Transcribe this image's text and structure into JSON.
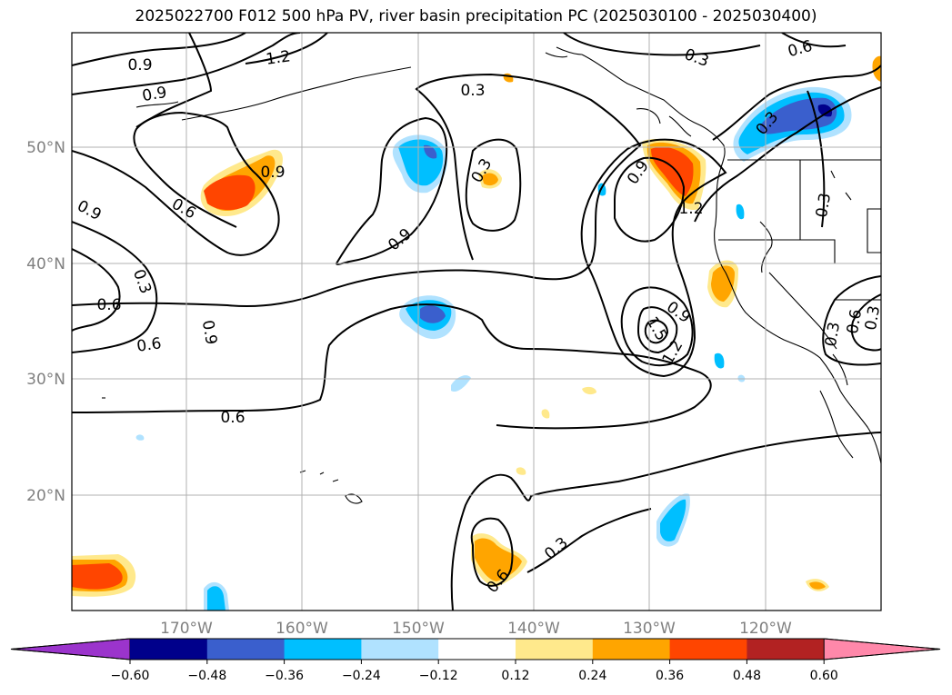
{
  "title": "2025022700 F012 500 hPa PV, river basin precipitation PC (2025030100 - 2025030400)",
  "map": {
    "lon_ticks": [
      "170°W",
      "160°W",
      "150°W",
      "140°W",
      "130°W",
      "120°W"
    ],
    "lat_ticks": [
      "50°N",
      "40°N",
      "30°N",
      "20°N"
    ],
    "contour_labels": [
      "0.9",
      "1.2",
      "0.9",
      "0.9",
      "0.6",
      "0.3",
      "0.6",
      "0.9",
      "0.3",
      "0.6",
      "0.6",
      "0.3",
      "0.9",
      "0.3",
      "0.9",
      "0.3",
      "0.6",
      "0.3",
      "0.9",
      "1.5",
      "1.2",
      "0.3",
      "0.6",
      "0.3",
      "0.6",
      "0.9",
      "1.2",
      "0.3"
    ]
  },
  "colorbar": {
    "labels": [
      "−0.60",
      "−0.48",
      "−0.36",
      "−0.24",
      "−0.12",
      "0.12",
      "0.24",
      "0.36",
      "0.48",
      "0.60"
    ],
    "colors": [
      "#9b34cc",
      "#00008b",
      "#3a5fcd",
      "#00bfff",
      "#b0e2ff",
      "#ffffff",
      "#ffe98c",
      "#ffa500",
      "#ff4500",
      "#b22222",
      "#ff88aa"
    ]
  }
}
